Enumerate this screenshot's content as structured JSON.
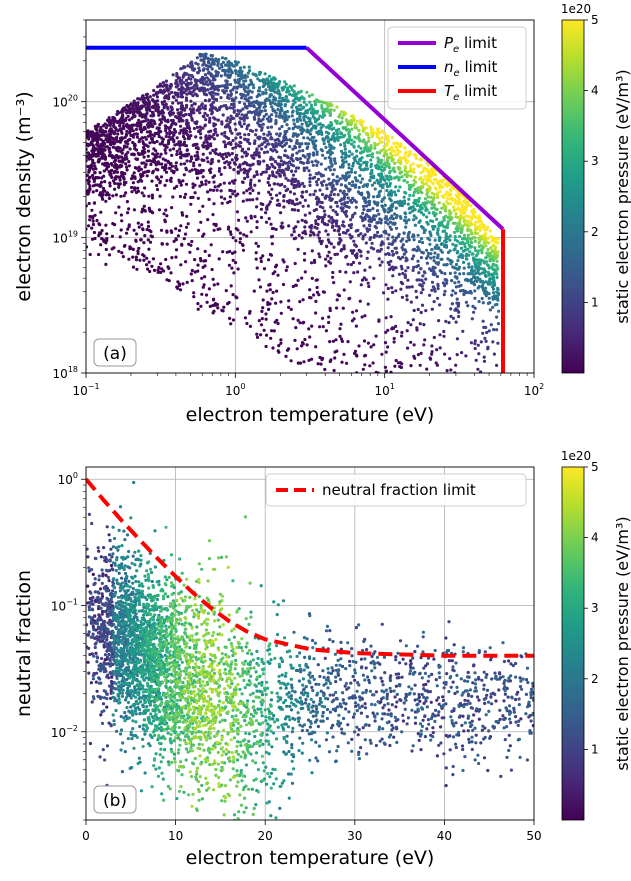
{
  "chart_data": [
    {
      "type": "scatter",
      "panel_label": "(a)",
      "xlabel": "electron temperature (eV)",
      "ylabel": "electron density (m⁻³)",
      "xscale": "log",
      "yscale": "log",
      "xlim": [
        0.1,
        100
      ],
      "ylim": [
        1e+18,
        4e+20
      ],
      "x_ticks": [
        {
          "value": 0.1,
          "base": "10",
          "exp": "−1"
        },
        {
          "value": 1,
          "base": "10",
          "exp": "0"
        },
        {
          "value": 10,
          "base": "10",
          "exp": "1"
        },
        {
          "value": 100,
          "base": "10",
          "exp": "2"
        }
      ],
      "y_ticks": [
        {
          "value": 1e+18,
          "base": "10",
          "exp": "18"
        },
        {
          "value": 1e+19,
          "base": "10",
          "exp": "19"
        },
        {
          "value": 1e+20,
          "base": "10",
          "exp": "20"
        }
      ],
      "grid": true,
      "legend_position": "top-right",
      "series": [
        {
          "name": "Pₑ limit",
          "name_main": "P",
          "name_sub": "e",
          "name_rest": " limit",
          "color": "#9400d3",
          "style": "solid",
          "x": [
            3.0,
            62.0
          ],
          "y": [
            2.5e+20,
            1.15e+19
          ]
        },
        {
          "name": "nₑ limit",
          "name_main": "n",
          "name_sub": "e",
          "name_rest": " limit",
          "color": "#0000ff",
          "style": "solid",
          "x": [
            0.1,
            3.0
          ],
          "y": [
            2.5e+20,
            2.5e+20
          ]
        },
        {
          "name": "Tₑ limit",
          "name_main": "T",
          "name_sub": "e",
          "name_rest": " limit",
          "color": "#ff0000",
          "style": "solid",
          "x": [
            62.0,
            62.0
          ],
          "y": [
            1e+18,
            1.15e+19
          ]
        }
      ],
      "scatter_description": {
        "color_variable": "static electron pressure",
        "band_upper_x": [
          0.1,
          0.3,
          0.6,
          1.0,
          3.0,
          10,
          30,
          55
        ],
        "band_upper_y": [
          6e+19,
          1.3e+20,
          2.3e+20,
          2e+20,
          1.2e+20,
          6e+19,
          2.5e+19,
          1e+19
        ],
        "band_lower_x": [
          0.1,
          0.3,
          1.0,
          3.0,
          10,
          30,
          55
        ],
        "band_lower_y": [
          1.5e+19,
          1.8e+19,
          1.2e+19,
          6e+18,
          3e+18,
          2e+18,
          2.5e+18
        ]
      },
      "colorbar": {
        "label": "static electron pressure (eV/m³)",
        "multiplier": "1e20",
        "min": 0,
        "max": 5,
        "ticks": [
          "1",
          "2",
          "3",
          "4",
          "5"
        ],
        "colormap": "viridis"
      }
    },
    {
      "type": "scatter",
      "panel_label": "(b)",
      "xlabel": "electron temperature (eV)",
      "ylabel": "neutral fraction",
      "xscale": "linear",
      "yscale": "log",
      "xlim": [
        0,
        50
      ],
      "ylim": [
        0.002,
        1.25
      ],
      "x_ticks": [
        "0",
        "10",
        "20",
        "30",
        "40",
        "50"
      ],
      "y_ticks": [
        {
          "value": 0.01,
          "base": "10",
          "exp": "−2"
        },
        {
          "value": 0.1,
          "base": "10",
          "exp": "−1"
        },
        {
          "value": 1,
          "base": "10",
          "exp": "0"
        }
      ],
      "grid": true,
      "legend_position": "top-right",
      "series": [
        {
          "name": "neutral fraction limit",
          "color": "#ff0000",
          "style": "dashed",
          "x": [
            0,
            2,
            4,
            6,
            8,
            10,
            12,
            14,
            16,
            18,
            20,
            25,
            30,
            40,
            50
          ],
          "y": [
            1.0,
            0.68,
            0.47,
            0.33,
            0.235,
            0.17,
            0.125,
            0.095,
            0.075,
            0.062,
            0.054,
            0.045,
            0.042,
            0.04,
            0.04
          ]
        }
      ],
      "scatter_description": {
        "color_variable": "static electron pressure",
        "band_upper_x": [
          0,
          2,
          5,
          10,
          20,
          30,
          50
        ],
        "band_upper_y": [
          0.3,
          0.25,
          0.2,
          0.13,
          0.07,
          0.05,
          0.04
        ],
        "band_lower_x": [
          0,
          5,
          10,
          15,
          20,
          25,
          30,
          50
        ],
        "band_lower_y": [
          0.02,
          0.012,
          0.006,
          0.003,
          0.003,
          0.006,
          0.007,
          0.008
        ]
      },
      "colorbar": {
        "label": "static electron pressure (eV/m³)",
        "multiplier": "1e20",
        "min": 0,
        "max": 5,
        "ticks": [
          "1",
          "2",
          "3",
          "4",
          "5"
        ],
        "colormap": "viridis"
      }
    }
  ]
}
